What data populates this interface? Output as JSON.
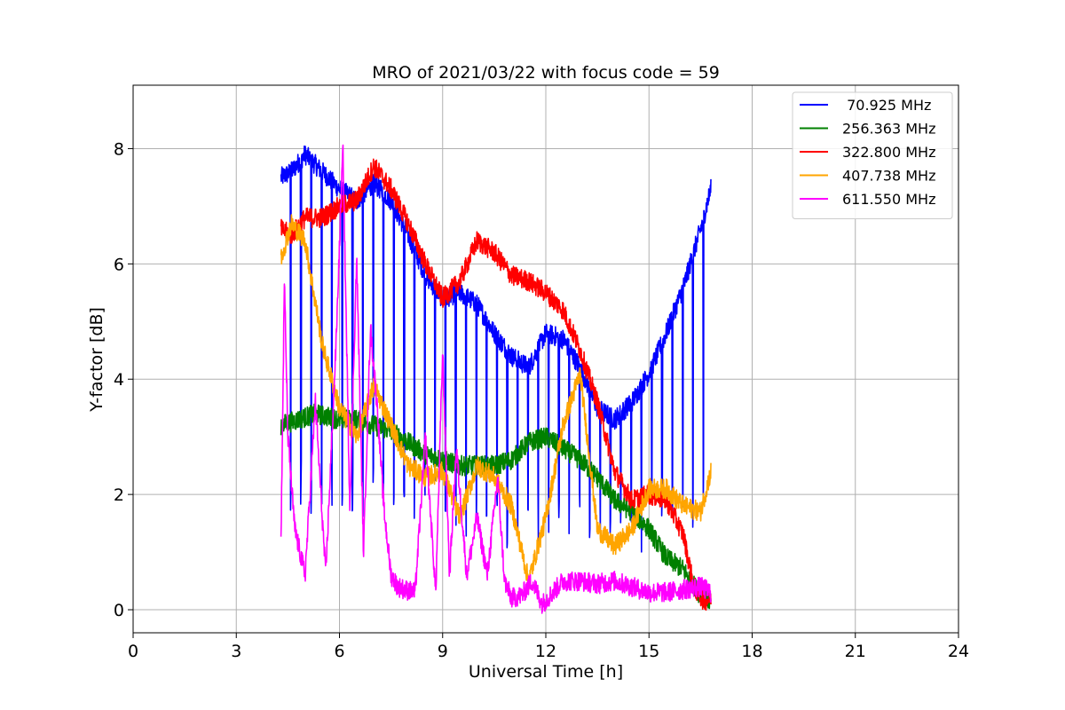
{
  "chart_data": {
    "type": "line",
    "title": "MRO of 2021/03/22 with focus code = 59",
    "xlabel": "Universal Time [h]",
    "ylabel": "Y-factor [dB]",
    "xlim": [
      0,
      24
    ],
    "ylim": [
      -0.4,
      9.1
    ],
    "xticks": [
      0,
      3,
      6,
      9,
      12,
      15,
      18,
      21,
      24
    ],
    "yticks": [
      0,
      2,
      4,
      6,
      8
    ],
    "grid": true,
    "legend_position": "top-right",
    "series": [
      {
        "name": " 70.925 MHz",
        "color": "#0000ff",
        "x": [
          4.3,
          4.6,
          5.0,
          5.5,
          6.0,
          6.5,
          7.0,
          7.5,
          8.0,
          8.5,
          9.0,
          9.5,
          10.0,
          10.5,
          11.0,
          11.5,
          12.0,
          12.5,
          13.0,
          13.5,
          14.0,
          14.5,
          15.0,
          15.5,
          16.0,
          16.5,
          16.8
        ],
        "y": [
          7.5,
          7.6,
          7.9,
          7.6,
          7.3,
          7.1,
          7.4,
          7.1,
          6.5,
          5.8,
          5.4,
          5.5,
          5.3,
          4.8,
          4.4,
          4.2,
          4.8,
          4.7,
          4.2,
          3.5,
          3.3,
          3.6,
          4.1,
          4.8,
          5.6,
          6.6,
          7.3
        ],
        "dip_period_h": 0.3,
        "dip_to": 1.0
      },
      {
        "name": "256.363 MHz",
        "color": "#008000",
        "x": [
          4.3,
          4.8,
          5.3,
          6.0,
          6.5,
          7.0,
          7.5,
          8.0,
          8.5,
          9.0,
          9.5,
          10.0,
          10.5,
          11.0,
          11.5,
          12.0,
          12.5,
          13.0,
          13.5,
          14.0,
          14.5,
          15.0,
          15.5,
          16.0,
          16.5,
          16.8
        ],
        "y": [
          3.2,
          3.3,
          3.4,
          3.3,
          3.3,
          3.2,
          3.1,
          2.9,
          2.7,
          2.6,
          2.5,
          2.5,
          2.5,
          2.6,
          2.9,
          3.0,
          2.8,
          2.6,
          2.3,
          1.9,
          1.7,
          1.4,
          0.9,
          0.7,
          0.25,
          0.15
        ]
      },
      {
        "name": "322.800 MHz",
        "color": "#ff0000",
        "x": [
          4.3,
          4.6,
          5.0,
          5.5,
          6.0,
          6.5,
          7.0,
          7.5,
          8.0,
          8.5,
          9.0,
          9.5,
          10.0,
          10.5,
          11.0,
          11.5,
          12.0,
          12.5,
          13.0,
          13.5,
          14.0,
          14.5,
          15.0,
          15.5,
          16.0,
          16.3,
          16.6,
          16.8
        ],
        "y": [
          6.6,
          6.5,
          6.8,
          6.8,
          7.0,
          7.1,
          7.7,
          7.3,
          6.7,
          6.0,
          5.4,
          5.7,
          6.4,
          6.2,
          5.8,
          5.7,
          5.5,
          5.2,
          4.5,
          3.6,
          2.4,
          1.9,
          2.0,
          1.9,
          1.3,
          0.4,
          0.15,
          0.2
        ]
      },
      {
        "name": "407.738 MHz",
        "color": "#ffa500",
        "x": [
          4.3,
          4.6,
          5.0,
          5.5,
          6.0,
          6.5,
          7.0,
          7.5,
          8.0,
          8.5,
          9.0,
          9.5,
          10.0,
          10.5,
          11.0,
          11.5,
          12.0,
          12.5,
          13.0,
          13.5,
          14.0,
          14.5,
          15.0,
          15.5,
          16.0,
          16.5,
          16.8
        ],
        "y": [
          6.1,
          6.7,
          6.4,
          4.6,
          3.5,
          3.0,
          3.9,
          3.2,
          2.5,
          2.3,
          2.4,
          1.6,
          2.5,
          2.3,
          1.8,
          0.5,
          1.6,
          3.2,
          4.1,
          1.4,
          1.1,
          1.4,
          2.1,
          2.1,
          1.8,
          1.7,
          2.4
        ]
      },
      {
        "name": "611.550 MHz",
        "color": "#ff00ff",
        "x": [
          4.3,
          4.4,
          4.5,
          4.7,
          5.0,
          5.3,
          5.6,
          5.9,
          6.1,
          6.3,
          6.5,
          6.7,
          6.9,
          7.1,
          7.3,
          7.5,
          7.7,
          7.9,
          8.2,
          8.5,
          8.8,
          9.0,
          9.2,
          9.4,
          9.7,
          10.0,
          10.3,
          10.6,
          10.8,
          11.0,
          11.3,
          11.6,
          11.9,
          12.2,
          12.5,
          13.0,
          13.5,
          14.0,
          14.5,
          15.0,
          15.5,
          16.0,
          16.5,
          16.8
        ],
        "y": [
          1.2,
          5.7,
          3.0,
          1.4,
          0.6,
          3.6,
          0.6,
          4.6,
          8.0,
          1.8,
          6.1,
          1.0,
          4.9,
          3.5,
          1.7,
          0.6,
          0.4,
          0.35,
          0.3,
          3.0,
          0.3,
          4.5,
          0.6,
          2.8,
          0.6,
          1.6,
          0.6,
          2.3,
          0.5,
          0.2,
          0.25,
          0.5,
          0.1,
          0.3,
          0.5,
          0.5,
          0.45,
          0.5,
          0.4,
          0.3,
          0.3,
          0.35,
          0.4,
          0.3
        ]
      }
    ]
  }
}
